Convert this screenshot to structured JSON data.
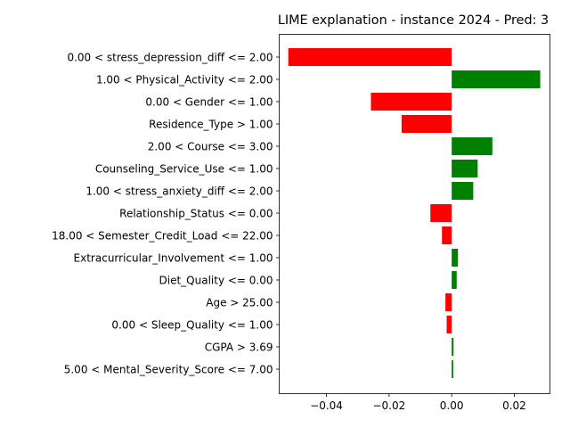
{
  "colors": {
    "positive": "#008000",
    "negative": "#ff0000",
    "axis": "#000000"
  },
  "chart_data": {
    "type": "bar",
    "orientation": "horizontal",
    "title": "LIME explanation - instance 2024 - Pred: 3",
    "xlabel": "",
    "ylabel": "",
    "xlim": [
      -0.0551,
      0.0314
    ],
    "xticks": [
      -0.04,
      -0.02,
      0.0,
      0.02
    ],
    "xtick_labels": [
      "−0.04",
      "−0.02",
      "0.00",
      "0.02"
    ],
    "grid": false,
    "categories": [
      "0.00 < stress_depression_diff <= 2.00",
      "1.00 < Physical_Activity <= 2.00",
      "0.00 < Gender <= 1.00",
      "Residence_Type > 1.00",
      "2.00 < Course <= 3.00",
      "Counseling_Service_Use <= 1.00",
      "1.00 < stress_anxiety_diff <= 2.00",
      "Relationship_Status <= 0.00",
      "18.00 < Semester_Credit_Load <= 22.00",
      "Extracurricular_Involvement <= 1.00",
      "Diet_Quality <= 0.00",
      "Age > 25.00",
      "0.00 < Sleep_Quality <= 1.00",
      "CGPA > 3.69",
      "5.00 < Mental_Severity_Score <= 7.00"
    ],
    "values": [
      -0.0522,
      0.0283,
      -0.0258,
      -0.016,
      0.013,
      0.0083,
      0.0069,
      -0.0068,
      -0.0031,
      0.002,
      0.0016,
      -0.002,
      -0.0016,
      0.0006,
      0.0005
    ]
  }
}
